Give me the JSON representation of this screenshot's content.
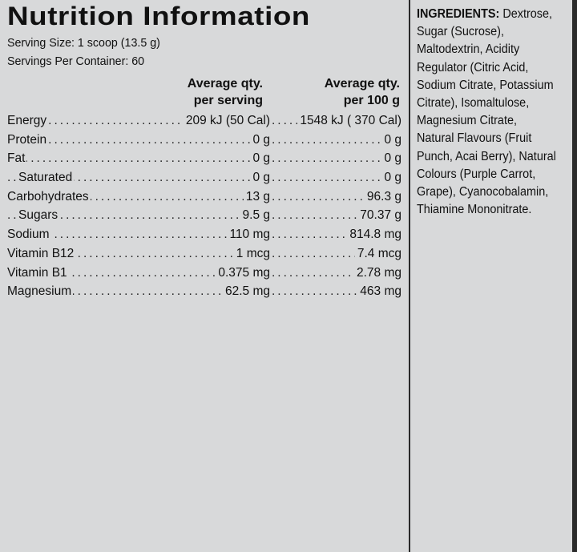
{
  "title": "Nutrition Information",
  "serving_size": "Serving Size: 1 scoop (13.5 g)",
  "servings_per_container": "Servings Per Container: 60",
  "columns": {
    "per_serving_line1": "Average qty.",
    "per_serving_line2": "per serving",
    "per_100g_line1": "Average qty.",
    "per_100g_line2": "per 100 g"
  },
  "rows": [
    {
      "name": "Energy",
      "per_serving": "209 kJ (50 Cal)",
      "per_100g": "1548 kJ ( 370 Cal)",
      "indent": false
    },
    {
      "name": "Protein",
      "per_serving": "0 g",
      "per_100g": "0 g",
      "indent": false
    },
    {
      "name": "Fat",
      "per_serving": "0 g",
      "per_100g": "0 g",
      "indent": false
    },
    {
      "name": "Saturated",
      "per_serving": "0 g",
      "per_100g": "0 g",
      "indent": true
    },
    {
      "name": "Carbohydrates",
      "per_serving": "13 g",
      "per_100g": "96.3 g",
      "indent": false
    },
    {
      "name": "Sugars",
      "per_serving": "9.5 g",
      "per_100g": "70.37 g",
      "indent": true
    },
    {
      "name": "Sodium",
      "per_serving": "110 mg",
      "per_100g": "814.8 mg",
      "indent": false
    },
    {
      "name": "Vitamin B12",
      "per_serving": "1 mcg",
      "per_100g": "7.4 mcg",
      "indent": false
    },
    {
      "name": "Vitamin B1",
      "per_serving": "0.375 mg",
      "per_100g": "2.78 mg",
      "indent": false
    },
    {
      "name": "Magnesium",
      "per_serving": "62.5 mg",
      "per_100g": "463 mg",
      "indent": false
    }
  ],
  "ingredients": {
    "label": "INGREDIENTS:",
    "text": "Dextrose, Sugar (Sucrose), Maltodextrin, Acidity Regulator (Citric Acid, Sodium Citrate, Potassium Citrate), Isomaltulose, Magnesium Citrate, Natural Flavours (Fruit Punch, Acai Berry), Natural Colours (Purple Carrot, Grape), Cyanocobalamin, Thiamine Mononitrate."
  }
}
